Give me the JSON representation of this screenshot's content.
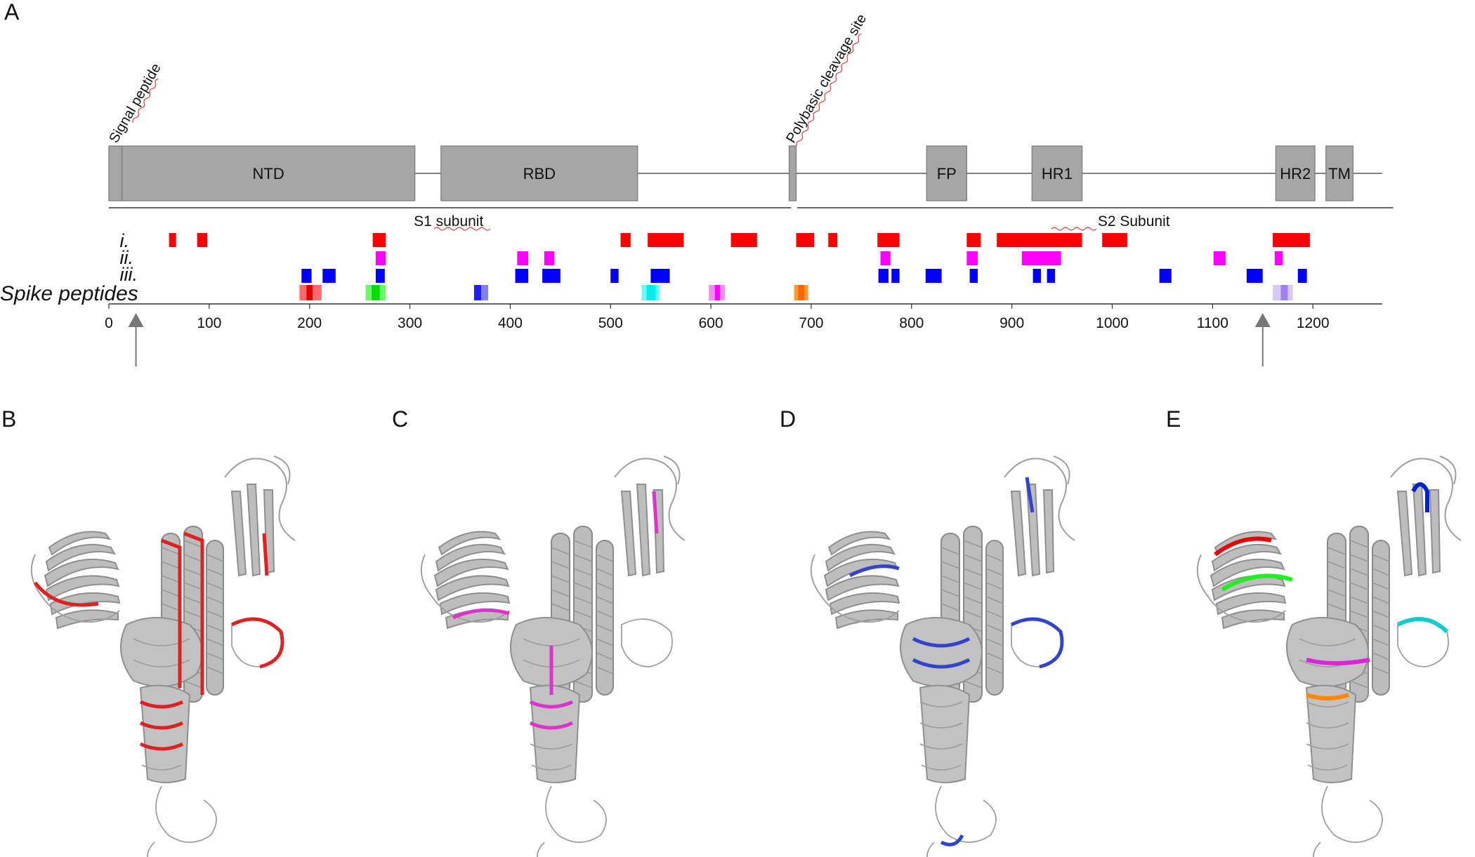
{
  "panels": {
    "a": "A",
    "b": "B",
    "c": "C",
    "d": "D",
    "e": "E"
  },
  "sites": {
    "signal_peptide": "Signal peptide",
    "cleavage_site": "Polybasic cleavage site"
  },
  "domains": [
    {
      "key": "ntd",
      "label": "NTD",
      "start": 13,
      "end": 305
    },
    {
      "key": "rbd",
      "label": "RBD",
      "start": 331,
      "end": 527
    },
    {
      "key": "fp",
      "label": "FP",
      "start": 815,
      "end": 855
    },
    {
      "key": "hr1",
      "label": "HR1",
      "start": 920,
      "end": 970
    },
    {
      "key": "hr2",
      "label": "HR2",
      "start": 1163,
      "end": 1202
    },
    {
      "key": "tm",
      "label": "TM",
      "start": 1213,
      "end": 1240
    }
  ],
  "signal_peptide_range": [
    1,
    13
  ],
  "cleavage_range": [
    678,
    685
  ],
  "subunits": {
    "s1": {
      "label": "S1 subunit",
      "start": 1,
      "end": 680
    },
    "s2": {
      "label": "S2 Subunit",
      "start": 686,
      "end": 1273
    }
  },
  "rows": {
    "i": "i.",
    "ii": "ii.",
    "iii": "iii.",
    "spike": "Spike peptides"
  },
  "axis": {
    "min": 0,
    "max": 1273,
    "ticks": [
      "0",
      "100",
      "200",
      "300",
      "400",
      "500",
      "600",
      "700",
      "800",
      "900",
      "1000",
      "1100",
      "1200"
    ]
  },
  "arrows": [
    27,
    1150
  ],
  "colors": {
    "domain_fill": "#a6a6a6",
    "red": "#ff0000",
    "magenta": "#ff00ff",
    "blue": "#0000ff",
    "structure_grey": "#9e9e9e"
  },
  "peptides": {
    "i": [
      [
        60,
        67
      ],
      [
        88,
        98
      ],
      [
        263,
        276
      ],
      [
        510,
        520
      ],
      [
        537,
        573
      ],
      [
        620,
        646
      ],
      [
        685,
        703
      ],
      [
        717,
        726
      ],
      [
        766,
        788
      ],
      [
        855,
        869
      ],
      [
        885,
        970
      ],
      [
        990,
        1015
      ],
      [
        1160,
        1197
      ]
    ],
    "ii": [
      [
        266,
        276
      ],
      [
        407,
        418
      ],
      [
        434,
        444
      ],
      [
        769,
        779
      ],
      [
        855,
        866
      ],
      [
        910,
        949
      ],
      [
        1101,
        1113
      ],
      [
        1162,
        1170
      ]
    ],
    "iii": [
      [
        192,
        202
      ],
      [
        213,
        226
      ],
      [
        266,
        275
      ],
      [
        405,
        418
      ],
      [
        432,
        450
      ],
      [
        500,
        508
      ],
      [
        540,
        559
      ],
      [
        767,
        777
      ],
      [
        780,
        788
      ],
      [
        814,
        830
      ],
      [
        858,
        866
      ],
      [
        921,
        929
      ],
      [
        935,
        943
      ],
      [
        1047,
        1059
      ],
      [
        1134,
        1150
      ],
      [
        1185,
        1194
      ]
    ],
    "spike": [
      {
        "range": [
          190,
          212
        ],
        "color": "#ff6b6b"
      },
      {
        "range": [
          197,
          203
        ],
        "color": "#e00000"
      },
      {
        "range": [
          256,
          276
        ],
        "color": "#66ff66"
      },
      {
        "range": [
          262,
          270
        ],
        "color": "#00dd00"
      },
      {
        "range": [
          364,
          378
        ],
        "color": "#8080ff"
      },
      {
        "range": [
          364,
          371
        ],
        "color": "#2020ff"
      },
      {
        "range": [
          531,
          549
        ],
        "color": "#66ffff"
      },
      {
        "range": [
          536,
          545
        ],
        "color": "#00eeee"
      },
      {
        "range": [
          598,
          614
        ],
        "color": "#ff88ff"
      },
      {
        "range": [
          604,
          609
        ],
        "color": "#ff00ff"
      },
      {
        "range": [
          683,
          697
        ],
        "color": "#ff9933"
      },
      {
        "range": [
          687,
          693
        ],
        "color": "#ff6600"
      },
      {
        "range": [
          1160,
          1180
        ],
        "color": "#d8c8f8"
      },
      {
        "range": [
          1168,
          1175
        ],
        "color": "#a080ee"
      }
    ]
  },
  "structures": [
    {
      "panel": "b",
      "highlight": "#dd2222"
    },
    {
      "panel": "c",
      "highlight": "#dd33cc"
    },
    {
      "panel": "d",
      "highlight": "#3344cc"
    },
    {
      "panel": "e",
      "highlight": "#ee0000"
    }
  ]
}
